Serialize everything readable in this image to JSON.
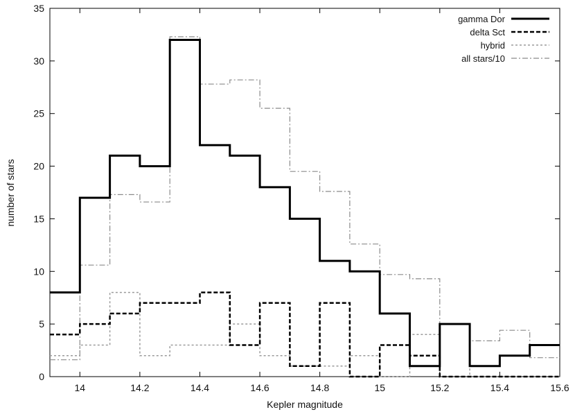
{
  "chart_data": {
    "type": "line",
    "step": true,
    "title": "",
    "xlabel": "Kepler magnitude",
    "ylabel": "number of stars",
    "xlim": [
      13.9,
      15.6
    ],
    "ylim": [
      0,
      35
    ],
    "xticks": [
      14,
      14.2,
      14.4,
      14.6,
      14.8,
      15,
      15.2,
      15.4,
      15.6
    ],
    "yticks": [
      0,
      5,
      10,
      15,
      20,
      25,
      30,
      35
    ],
    "bin_width": 0.1,
    "x": [
      13.9,
      14.0,
      14.1,
      14.2,
      14.3,
      14.4,
      14.5,
      14.6,
      14.7,
      14.8,
      14.9,
      15.0,
      15.1,
      15.2,
      15.3,
      15.4,
      15.5
    ],
    "legend_position": "top-right",
    "series": [
      {
        "name": "gamma Dor",
        "color": "#000000",
        "style": "solid-bold",
        "values": [
          8,
          17,
          21,
          20,
          32,
          22,
          21,
          18,
          15,
          11,
          10,
          6,
          1,
          5,
          1,
          2,
          3
        ]
      },
      {
        "name": "delta Sct",
        "color": "#000000",
        "style": "dashed",
        "values": [
          4,
          5,
          6,
          7,
          7,
          8,
          3,
          7,
          1,
          7,
          0,
          3,
          2,
          0,
          0,
          0,
          0
        ]
      },
      {
        "name": "hybrid",
        "color": "#9a9a9a",
        "style": "dotted",
        "values": [
          2,
          3,
          8,
          2,
          3,
          3,
          5,
          2,
          1,
          1,
          2,
          0,
          4,
          5,
          0,
          0,
          0
        ]
      },
      {
        "name": "all stars/10",
        "color": "#8a8a8a",
        "style": "dash-dot",
        "values": [
          1.6,
          10.6,
          17.3,
          16.6,
          32.3,
          27.8,
          28.2,
          25.5,
          19.5,
          17.6,
          12.6,
          9.7,
          9.3,
          5.0,
          3.4,
          4.4,
          1.8
        ]
      }
    ]
  }
}
